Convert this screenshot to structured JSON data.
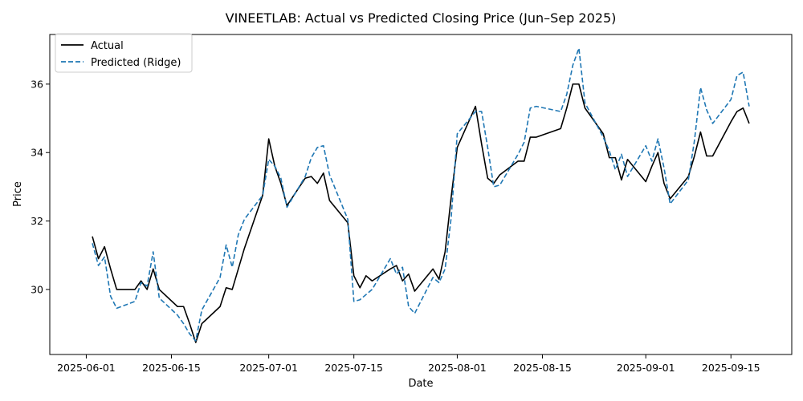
{
  "chart_data": {
    "type": "line",
    "title": "VINEETLAB: Actual vs Predicted Closing Price (Jun–Sep 2025)",
    "xlabel": "Date",
    "ylabel": "Price",
    "x_ticks": [
      "2025-06-01",
      "2025-06-15",
      "2025-07-01",
      "2025-07-15",
      "2025-08-01",
      "2025-08-15",
      "2025-09-01",
      "2025-09-15"
    ],
    "y_ticks": [
      30,
      32,
      34,
      36
    ],
    "xlim": [
      "2025-05-26",
      "2025-09-25"
    ],
    "ylim": [
      28.1,
      37.45
    ],
    "grid": false,
    "legend_position": "top-left",
    "colors": {
      "actual": "#000000",
      "predicted": "#1f77b4"
    },
    "x": [
      "2025-06-02",
      "2025-06-03",
      "2025-06-04",
      "2025-06-05",
      "2025-06-06",
      "2025-06-09",
      "2025-06-10",
      "2025-06-11",
      "2025-06-12",
      "2025-06-13",
      "2025-06-16",
      "2025-06-17",
      "2025-06-18",
      "2025-06-19",
      "2025-06-20",
      "2025-06-23",
      "2025-06-24",
      "2025-06-25",
      "2025-06-26",
      "2025-06-27",
      "2025-06-30",
      "2025-07-01",
      "2025-07-02",
      "2025-07-03",
      "2025-07-04",
      "2025-07-07",
      "2025-07-08",
      "2025-07-09",
      "2025-07-10",
      "2025-07-11",
      "2025-07-14",
      "2025-07-15",
      "2025-07-16",
      "2025-07-17",
      "2025-07-18",
      "2025-07-21",
      "2025-07-22",
      "2025-07-23",
      "2025-07-24",
      "2025-07-25",
      "2025-07-28",
      "2025-07-29",
      "2025-07-30",
      "2025-07-31",
      "2025-08-01",
      "2025-08-04",
      "2025-08-05",
      "2025-08-06",
      "2025-08-07",
      "2025-08-08",
      "2025-08-11",
      "2025-08-12",
      "2025-08-13",
      "2025-08-14",
      "2025-08-18",
      "2025-08-19",
      "2025-08-20",
      "2025-08-21",
      "2025-08-22",
      "2025-08-25",
      "2025-08-26",
      "2025-08-27",
      "2025-08-28",
      "2025-08-29",
      "2025-09-01",
      "2025-09-02",
      "2025-09-03",
      "2025-09-04",
      "2025-09-05",
      "2025-09-08",
      "2025-09-09",
      "2025-09-10",
      "2025-09-11",
      "2025-09-12",
      "2025-09-15",
      "2025-09-16",
      "2025-09-17",
      "2025-09-18"
    ],
    "series": [
      {
        "name": "Actual",
        "style": "solid",
        "values": [
          31.55,
          30.9,
          31.25,
          30.6,
          30.0,
          30.0,
          30.25,
          30.0,
          30.6,
          30.0,
          29.5,
          29.5,
          29.0,
          28.45,
          29.0,
          29.5,
          30.05,
          30.0,
          30.6,
          31.2,
          32.75,
          34.4,
          33.6,
          33.1,
          32.45,
          33.25,
          33.3,
          33.1,
          33.4,
          32.6,
          31.95,
          30.4,
          30.05,
          30.4,
          30.25,
          30.6,
          30.7,
          30.25,
          30.45,
          29.95,
          30.6,
          30.3,
          31.1,
          32.7,
          34.15,
          35.35,
          34.25,
          33.25,
          33.1,
          33.35,
          33.75,
          33.75,
          34.45,
          34.45,
          34.7,
          35.3,
          36.0,
          36.0,
          35.3,
          34.55,
          33.85,
          33.85,
          33.2,
          33.8,
          33.15,
          33.6,
          34.0,
          33.1,
          32.65,
          33.3,
          33.9,
          34.6,
          33.9,
          33.9,
          34.9,
          35.2,
          35.3,
          34.85
        ]
      },
      {
        "name": "Predicted (Ridge)",
        "style": "dashed",
        "values": [
          31.35,
          30.7,
          30.95,
          29.8,
          29.45,
          29.65,
          30.2,
          30.1,
          31.1,
          29.75,
          29.25,
          29.0,
          28.7,
          28.5,
          29.4,
          30.35,
          31.3,
          30.65,
          31.6,
          32.05,
          32.75,
          33.8,
          33.6,
          33.25,
          32.4,
          33.3,
          33.85,
          34.15,
          34.2,
          33.35,
          32.05,
          29.65,
          29.7,
          29.85,
          30.0,
          30.9,
          30.45,
          30.65,
          29.5,
          29.3,
          30.35,
          30.2,
          30.6,
          32.1,
          34.55,
          35.2,
          35.2,
          34.15,
          33.0,
          33.05,
          33.95,
          34.3,
          35.3,
          35.35,
          35.2,
          35.7,
          36.55,
          37.05,
          35.45,
          34.45,
          34.05,
          33.5,
          33.95,
          33.3,
          34.2,
          33.75,
          34.4,
          33.55,
          32.5,
          33.2,
          34.35,
          35.9,
          35.25,
          34.85,
          35.55,
          36.25,
          36.35,
          35.35
        ]
      }
    ]
  }
}
